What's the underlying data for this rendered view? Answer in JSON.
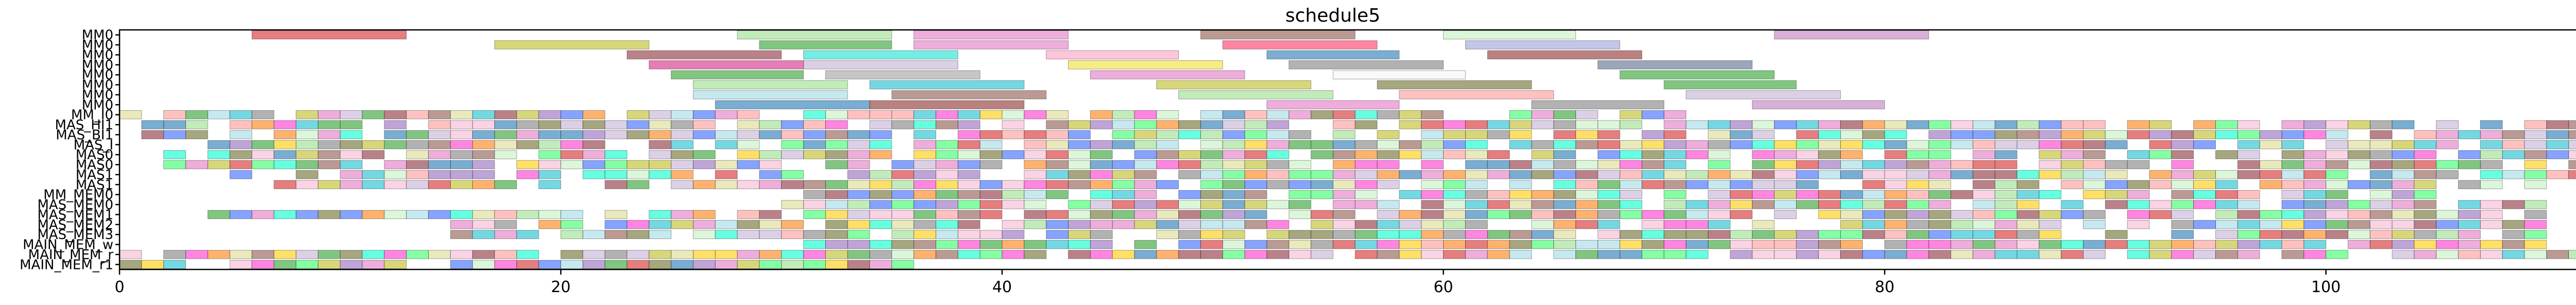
{
  "chart_data": {
    "type": "gantt",
    "title": "schedule5",
    "xlabel": "",
    "ylabel": "",
    "xlim": [
      0,
      115
    ],
    "x_ticks": [
      0,
      20,
      40,
      60,
      80,
      100
    ],
    "x_tick_labels": [
      "0",
      "20",
      "40",
      "60",
      "80",
      "100"
    ],
    "grid": false,
    "legend": "none",
    "y_tick_labels": [
      "MM0",
      "MM0",
      "MM0",
      "MM0",
      "MM0",
      "MM0",
      "MM0",
      "MM0",
      "MM_I0",
      "MAS_HI1",
      "MAS_BI1",
      "MAS_I",
      "MAS0",
      "MAS0",
      "MAS1",
      "MAS1",
      "MM_MEM0",
      "MAS_MEM0",
      "MAS_MEM1",
      "MAS_MEM2",
      "MAS_MEM3",
      "MAIN_MEM_w",
      "MAIN_MEM_r",
      "MAIN_MEM_r1"
    ],
    "bars_explicit": [
      {
        "row": 0,
        "start": 6,
        "end": 13,
        "color": "#d62728"
      },
      {
        "row": 0,
        "start": 28,
        "end": 35,
        "color": "#98df8a"
      },
      {
        "row": 0,
        "start": 36,
        "end": 43,
        "color": "#e377c2"
      },
      {
        "row": 0,
        "start": 49,
        "end": 56,
        "color": "#8c564b"
      },
      {
        "row": 0,
        "start": 60,
        "end": 66,
        "color": "#c5f0c0"
      },
      {
        "row": 0,
        "start": 75,
        "end": 82,
        "color": "#c07cc0"
      },
      {
        "row": 1,
        "start": 17,
        "end": 24,
        "color": "#bcbd22"
      },
      {
        "row": 1,
        "start": 29,
        "end": 35,
        "color": "#2ca02c"
      },
      {
        "row": 1,
        "start": 36,
        "end": 43,
        "color": "#e377c2"
      },
      {
        "row": 1,
        "start": 50,
        "end": 57,
        "color": "#ff3366"
      },
      {
        "row": 1,
        "start": 61,
        "end": 68,
        "color": "#9aa0d8"
      },
      {
        "row": 2,
        "start": 23,
        "end": 30,
        "color": "#8c2d3a"
      },
      {
        "row": 2,
        "start": 31,
        "end": 38,
        "color": "#17e3d3"
      },
      {
        "row": 2,
        "start": 42,
        "end": 48,
        "color": "#ff9ec0"
      },
      {
        "row": 2,
        "start": 52,
        "end": 58,
        "color": "#1f77b4"
      },
      {
        "row": 2,
        "start": 62,
        "end": 69,
        "color": "#8c2d2d"
      },
      {
        "row": 3,
        "start": 24,
        "end": 31,
        "color": "#d62783"
      },
      {
        "row": 3,
        "start": 31,
        "end": 38,
        "color": "#c5b0d5"
      },
      {
        "row": 3,
        "start": 43,
        "end": 50,
        "color": "#f0e030"
      },
      {
        "row": 3,
        "start": 53,
        "end": 60,
        "color": "#7f7f7f"
      },
      {
        "row": 3,
        "start": 67,
        "end": 74,
        "color": "#5a6b8c"
      },
      {
        "row": 4,
        "start": 25,
        "end": 31,
        "color": "#2ca02c"
      },
      {
        "row": 4,
        "start": 32,
        "end": 39,
        "color": "#a0a0a0"
      },
      {
        "row": 4,
        "start": 44,
        "end": 51,
        "color": "#e377c2"
      },
      {
        "row": 4,
        "start": 55,
        "end": 61,
        "color": "#f5f5f5"
      },
      {
        "row": 4,
        "start": 68,
        "end": 75,
        "color": "#2ca02c"
      },
      {
        "row": 5,
        "start": 26,
        "end": 33,
        "color": "#98df8a"
      },
      {
        "row": 5,
        "start": 34,
        "end": 41,
        "color": "#17becf"
      },
      {
        "row": 5,
        "start": 47,
        "end": 54,
        "color": "#bcbd22"
      },
      {
        "row": 5,
        "start": 57,
        "end": 64,
        "color": "#6b6b2a"
      },
      {
        "row": 5,
        "start": 70,
        "end": 76,
        "color": "#2ca02c"
      },
      {
        "row": 6,
        "start": 26,
        "end": 33,
        "color": "#9edae5"
      },
      {
        "row": 6,
        "start": 35,
        "end": 42,
        "color": "#8c564b"
      },
      {
        "row": 6,
        "start": 48,
        "end": 55,
        "color": "#98df8a"
      },
      {
        "row": 6,
        "start": 58,
        "end": 65,
        "color": "#ff9896"
      },
      {
        "row": 6,
        "start": 71,
        "end": 78,
        "color": "#c5b0d5"
      },
      {
        "row": 7,
        "start": 27,
        "end": 34,
        "color": "#1f77b4"
      },
      {
        "row": 7,
        "start": 34,
        "end": 41,
        "color": "#8c2d2d"
      },
      {
        "row": 7,
        "start": 52,
        "end": 58,
        "color": "#e377c2"
      },
      {
        "row": 7,
        "start": 64,
        "end": 70,
        "color": "#7f7f7f"
      },
      {
        "row": 7,
        "start": 74,
        "end": 80,
        "color": "#c07cc0"
      }
    ],
    "dense_rows": [
      {
        "row": 8,
        "start": 0,
        "end": 71,
        "slot": 1
      },
      {
        "row": 9,
        "start": 0,
        "end": 112,
        "slot": 1
      },
      {
        "row": 10,
        "start": 0,
        "end": 112,
        "slot": 1
      },
      {
        "row": 11,
        "start": 3,
        "end": 113,
        "slot": 1
      },
      {
        "row": 12,
        "start": 1,
        "end": 112,
        "slot": 1
      },
      {
        "row": 13,
        "start": 2,
        "end": 112,
        "slot": 1
      },
      {
        "row": 14,
        "start": 5,
        "end": 112,
        "slot": 1
      },
      {
        "row": 15,
        "start": 7,
        "end": 110,
        "slot": 1
      },
      {
        "row": 16,
        "start": 30,
        "end": 105,
        "slot": 1
      },
      {
        "row": 17,
        "start": 30,
        "end": 110,
        "slot": 1
      },
      {
        "row": 18,
        "start": 4,
        "end": 110,
        "slot": 1
      },
      {
        "row": 19,
        "start": 15,
        "end": 110,
        "slot": 1
      },
      {
        "row": 20,
        "start": 15,
        "end": 110,
        "slot": 1
      },
      {
        "row": 21,
        "start": 30,
        "end": 110,
        "slot": 1
      },
      {
        "row": 22,
        "start": 0,
        "end": 115,
        "slot": 1
      },
      {
        "row": 23,
        "start": 0,
        "end": 36,
        "slot": 1
      }
    ],
    "palette": [
      "#d62728",
      "#2ca02c",
      "#1f77b4",
      "#e377c2",
      "#8c564b",
      "#bcbd22",
      "#17becf",
      "#9467bd",
      "#ff7f0e",
      "#98df8a",
      "#ff9896",
      "#c5b0d5",
      "#f7b6d2",
      "#dbdb8d",
      "#9edae5",
      "#7f7f7f",
      "#00ffcc",
      "#ff33cc",
      "#3366ff",
      "#33ff66",
      "#ffcc00",
      "#6b6b2a",
      "#c5f0c0",
      "#8c2d3a"
    ]
  }
}
